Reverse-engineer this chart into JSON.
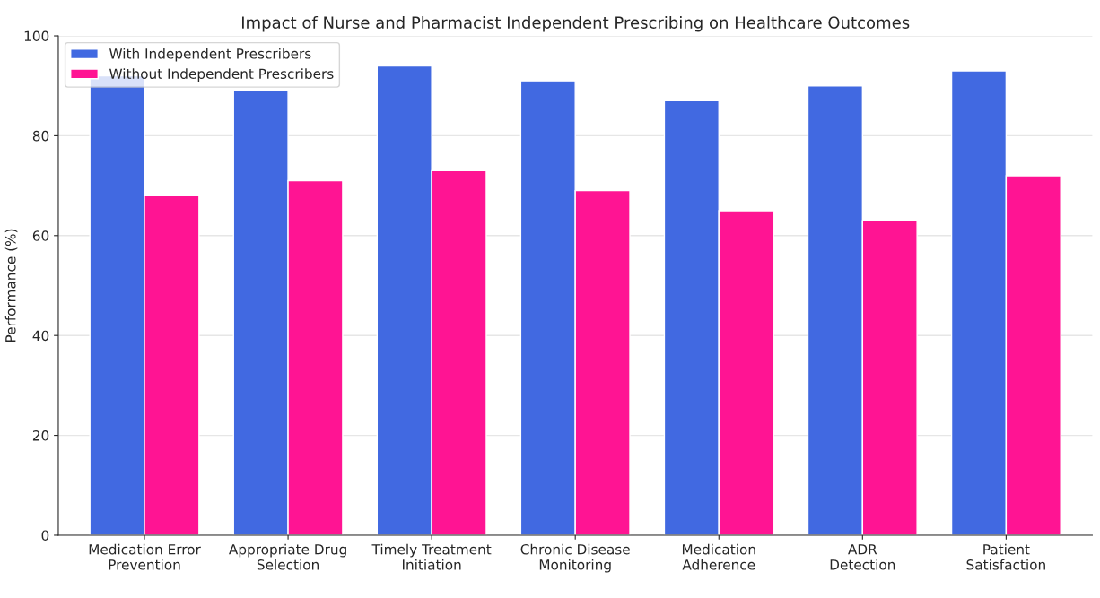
{
  "chart_data": {
    "type": "bar",
    "title": "Impact of Nurse and Pharmacist Independent Prescribing on Healthcare Outcomes",
    "ylabel": "Performance (%)",
    "categories": [
      "Medication Error\nPrevention",
      "Appropriate Drug\nSelection",
      "Timely Treatment\nInitiation",
      "Chronic Disease\nMonitoring",
      "Medication\nAdherence",
      "ADR\nDetection",
      "Patient\nSatisfaction"
    ],
    "series": [
      {
        "name": "With Independent Prescribers",
        "color": "#4169e1",
        "values": [
          92,
          89,
          94,
          91,
          87,
          90,
          93
        ]
      },
      {
        "name": "Without Independent Prescribers",
        "color": "#ff1493",
        "values": [
          68,
          71,
          73,
          69,
          65,
          63,
          72
        ]
      }
    ],
    "ylim": [
      0,
      100
    ],
    "yticks": [
      0,
      20,
      40,
      60,
      80,
      100
    ],
    "grid": "y",
    "legend": "top left"
  }
}
